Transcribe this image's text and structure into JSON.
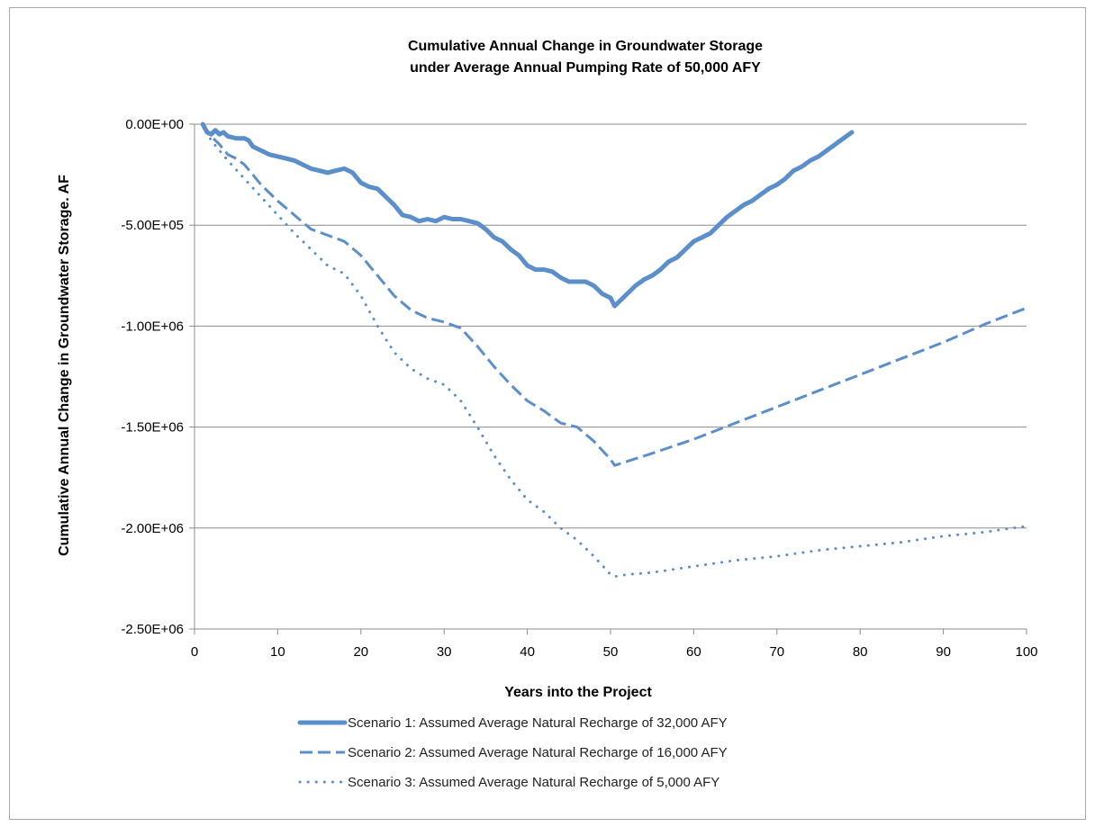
{
  "chart_data": {
    "type": "line",
    "title": "Cumulative Annual Change in Groundwater Storage",
    "subtitle": "under Average Annual Pumping Rate of 50,000 AFY",
    "xlabel": "Years into the Project",
    "ylabel": "Cumulative Annual Change in Groundwater Storage. AF",
    "xlim": [
      0,
      100
    ],
    "ylim": [
      -2500000,
      0
    ],
    "xticks": [
      0,
      10,
      20,
      30,
      40,
      50,
      60,
      70,
      80,
      90,
      100
    ],
    "yticks": [
      0,
      -500000,
      -1000000,
      -1500000,
      -2000000,
      -2500000
    ],
    "xtick_labels": [
      "0",
      "10",
      "20",
      "30",
      "40",
      "50",
      "60",
      "70",
      "80",
      "90",
      "100"
    ],
    "ytick_labels": [
      "0.00E+00",
      "-5.00E+05",
      "-1.00E+06",
      "-1.50E+06",
      "-2.00E+06",
      "-2.50E+06"
    ],
    "grid": "horizontal",
    "legend_position": "bottom",
    "color": "#5b8fcc",
    "series": [
      {
        "name": "Scenario 1: Assumed Average Natural Recharge of 32,000 AFY",
        "style": "solid-thick",
        "x": [
          1,
          1.5,
          2,
          2.5,
          3,
          3.5,
          4,
          5,
          6,
          6.5,
          7,
          8,
          9,
          10,
          11,
          12,
          13,
          14,
          15,
          16,
          17,
          18,
          19,
          20,
          21,
          22,
          23,
          24,
          25,
          26,
          27,
          28,
          29,
          30,
          31,
          32,
          33,
          34,
          35,
          36,
          37,
          38,
          39,
          40,
          41,
          42,
          43,
          44,
          45,
          46,
          47,
          48,
          49,
          50,
          50.5,
          51,
          52,
          53,
          54,
          55,
          56,
          57,
          58,
          59,
          60,
          61,
          62,
          63,
          64,
          65,
          66,
          67,
          68,
          69,
          70,
          71,
          72,
          73,
          74,
          75,
          76,
          77,
          78,
          79
        ],
        "y": [
          0,
          -40000,
          -50000,
          -30000,
          -50000,
          -40000,
          -60000,
          -70000,
          -70000,
          -80000,
          -110000,
          -130000,
          -150000,
          -160000,
          -170000,
          -180000,
          -200000,
          -220000,
          -230000,
          -240000,
          -230000,
          -220000,
          -240000,
          -290000,
          -310000,
          -320000,
          -360000,
          -400000,
          -450000,
          -460000,
          -480000,
          -470000,
          -480000,
          -460000,
          -470000,
          -470000,
          -480000,
          -490000,
          -520000,
          -560000,
          -580000,
          -620000,
          -650000,
          -700000,
          -720000,
          -720000,
          -730000,
          -760000,
          -780000,
          -780000,
          -780000,
          -800000,
          -840000,
          -860000,
          -900000,
          -880000,
          -840000,
          -800000,
          -770000,
          -750000,
          -720000,
          -680000,
          -660000,
          -620000,
          -580000,
          -560000,
          -540000,
          -500000,
          -460000,
          -430000,
          -400000,
          -380000,
          -350000,
          -320000,
          -300000,
          -270000,
          -230000,
          -210000,
          -180000,
          -160000,
          -130000,
          -100000,
          -70000,
          -40000
        ]
      },
      {
        "name": "Scenario 2: Assumed Average Natural Recharge of 16,000 AFY",
        "style": "dashed",
        "x": [
          1,
          2,
          3,
          4,
          5,
          6,
          7,
          8,
          10,
          12,
          14,
          16,
          18,
          20,
          22,
          24,
          26,
          28,
          30,
          32,
          34,
          35,
          36,
          38,
          40,
          42,
          44,
          46,
          48,
          50,
          50.5,
          52,
          55,
          60,
          65,
          70,
          75,
          80,
          85,
          90,
          95,
          100
        ],
        "y": [
          0,
          -60000,
          -100000,
          -150000,
          -170000,
          -200000,
          -250000,
          -300000,
          -380000,
          -450000,
          -520000,
          -550000,
          -580000,
          -650000,
          -750000,
          -850000,
          -920000,
          -960000,
          -980000,
          -1010000,
          -1100000,
          -1150000,
          -1200000,
          -1290000,
          -1370000,
          -1420000,
          -1480000,
          -1500000,
          -1570000,
          -1660000,
          -1690000,
          -1670000,
          -1630000,
          -1560000,
          -1480000,
          -1400000,
          -1320000,
          -1240000,
          -1160000,
          -1080000,
          -990000,
          -910000
        ]
      },
      {
        "name": "Scenario 3: Assumed Average Natural Recharge of 5,000 AFY",
        "style": "dotted",
        "x": [
          1,
          2,
          4,
          6,
          8,
          10,
          12,
          14,
          16,
          18,
          20,
          22,
          24,
          26,
          28,
          30,
          32,
          34,
          36,
          38,
          40,
          42,
          44,
          46,
          48,
          50,
          50.5,
          52,
          55,
          60,
          65,
          70,
          75,
          80,
          85,
          90,
          95,
          100
        ],
        "y": [
          0,
          -80000,
          -180000,
          -270000,
          -360000,
          -450000,
          -540000,
          -620000,
          -700000,
          -740000,
          -850000,
          -1000000,
          -1130000,
          -1210000,
          -1260000,
          -1290000,
          -1370000,
          -1500000,
          -1640000,
          -1760000,
          -1860000,
          -1920000,
          -2000000,
          -2060000,
          -2140000,
          -2230000,
          -2240000,
          -2230000,
          -2220000,
          -2190000,
          -2160000,
          -2140000,
          -2110000,
          -2090000,
          -2070000,
          -2040000,
          -2020000,
          -1990000
        ]
      }
    ]
  }
}
